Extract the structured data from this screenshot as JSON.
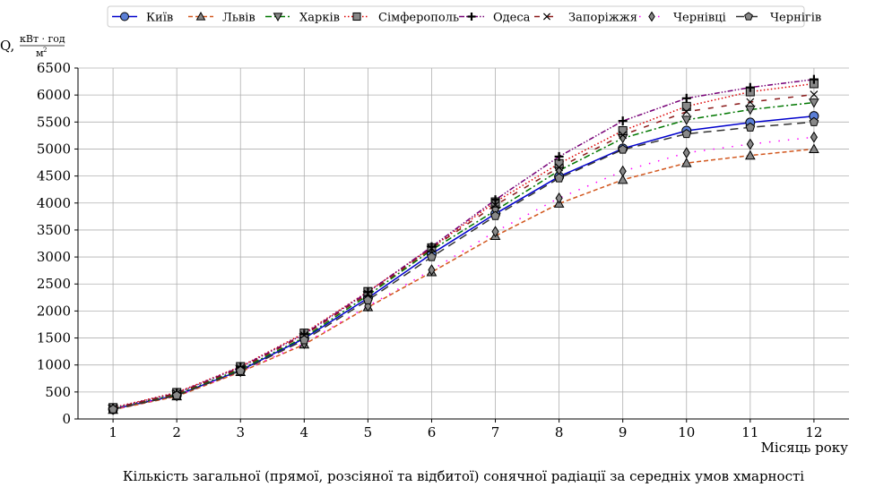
{
  "chart_data": {
    "type": "line",
    "x": [
      1,
      2,
      3,
      4,
      5,
      6,
      7,
      8,
      9,
      10,
      11,
      12
    ],
    "xlabel": "Місяць року",
    "ylabel_main": "Q,",
    "ylabel_num": "кВт · год",
    "ylabel_den": "м",
    "ylabel_exp": "2",
    "caption": "Кількість загальної (прямої, розсіяної та відбитої) сонячної радіації за середніх умов хмарності",
    "ylim": [
      0,
      6500
    ],
    "xlim": [
      0.45,
      12.55
    ],
    "yticks": [
      0,
      500,
      1000,
      1500,
      2000,
      2500,
      3000,
      3500,
      4000,
      4500,
      5000,
      5500,
      6000,
      6500
    ],
    "xticks": [
      1,
      2,
      3,
      4,
      5,
      6,
      7,
      8,
      9,
      10,
      11,
      12
    ],
    "grid": true,
    "legend_position": "top",
    "series": [
      {
        "name": "Київ",
        "values": [
          180,
          440,
          900,
          1490,
          2240,
          3060,
          3800,
          4490,
          5010,
          5340,
          5490,
          5610
        ],
        "color": "#0000cc",
        "dash": "solid",
        "marker": "circle"
      },
      {
        "name": "Львів",
        "values": [
          170,
          420,
          870,
          1380,
          2070,
          2720,
          3390,
          3990,
          4430,
          4740,
          4880,
          5000
        ],
        "color": "#d2571e",
        "dash": "dashed",
        "marker": "triangle-up"
      },
      {
        "name": "Харків",
        "values": [
          190,
          460,
          920,
          1510,
          2290,
          3130,
          3860,
          4600,
          5200,
          5540,
          5730,
          5860
        ],
        "color": "#007700",
        "dash": "dashdot",
        "marker": "triangle-down"
      },
      {
        "name": "Сімферополь",
        "values": [
          210,
          490,
          970,
          1590,
          2360,
          3170,
          4020,
          4730,
          5340,
          5790,
          6060,
          6210
        ],
        "color": "#dd0000",
        "dash": "dotted",
        "marker": "square"
      },
      {
        "name": "Одеса",
        "values": [
          200,
          480,
          960,
          1570,
          2350,
          3190,
          4060,
          4860,
          5520,
          5940,
          6140,
          6290
        ],
        "color": "#770077",
        "dash": "dashdotdot",
        "marker": "plus"
      },
      {
        "name": "Запоріжжя",
        "values": [
          195,
          470,
          940,
          1550,
          2320,
          3160,
          3960,
          4660,
          5260,
          5690,
          5870,
          6010
        ],
        "color": "#8b1a1a",
        "dash": "loosedash",
        "marker": "x"
      },
      {
        "name": "Чернівці",
        "values": [
          175,
          430,
          880,
          1400,
          2090,
          2760,
          3470,
          4090,
          4590,
          4930,
          5090,
          5220
        ],
        "color": "#ff00ff",
        "dash": "sparsedot",
        "marker": "diamond"
      },
      {
        "name": "Чернігів",
        "values": [
          178,
          435,
          890,
          1460,
          2200,
          3000,
          3760,
          4460,
          4990,
          5280,
          5400,
          5500
        ],
        "color": "#333333",
        "dash": "longdash",
        "marker": "pentagon"
      }
    ]
  }
}
